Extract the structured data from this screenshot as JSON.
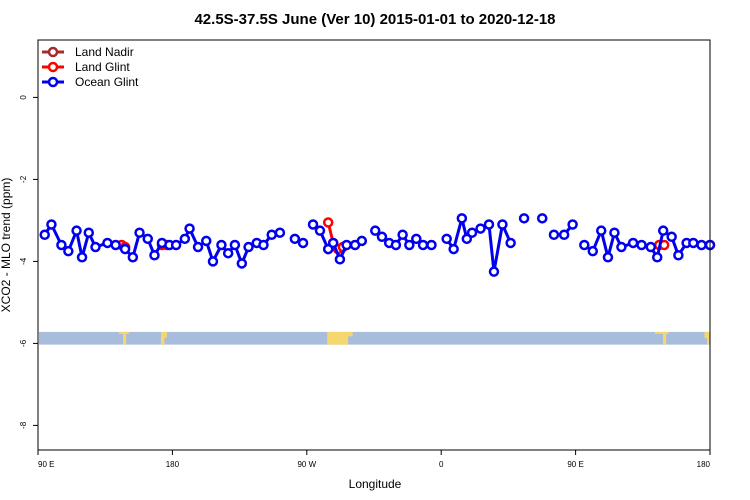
{
  "chart_data": {
    "type": "line",
    "title": "42.5S-37.5S June (Ver 10)   2015-01-01 to 2020-12-18",
    "xlabel": "Longitude",
    "ylabel": "XCO2 - MLO trend (ppm)",
    "xlim": [
      -90,
      180
    ],
    "ylim": [
      -8.6,
      1.4
    ],
    "x_ticks": [
      {
        "value": -90,
        "label": "90 E"
      },
      {
        "value": -36,
        "label": "180"
      },
      {
        "value": 18,
        "label": "90 W"
      },
      {
        "value": 72,
        "label": "0"
      },
      {
        "value": 126,
        "label": "90 E"
      },
      {
        "value": 180,
        "label": "180"
      }
    ],
    "y_ticks": [
      {
        "value": 0,
        "label": "0"
      },
      {
        "value": -2,
        "label": "-2"
      },
      {
        "value": -4,
        "label": "-4"
      },
      {
        "value": -6,
        "label": "-6"
      },
      {
        "value": -8,
        "label": "-8"
      }
    ],
    "legend_position": "top-left",
    "grid": false,
    "series": [
      {
        "name": "Land Nadir",
        "color": "#a52a2a",
        "segments": [
          [
            [
              26.6,
              -3.7
            ]
          ]
        ]
      },
      {
        "name": "Land Glint",
        "color": "#ff0000",
        "segments": [
          [
            [
              -56.4,
              -3.6
            ],
            [
              -55,
              -3.65
            ]
          ],
          [
            [
              -40.2,
              -3.6
            ],
            [
              -38.2,
              -3.6
            ]
          ],
          [
            [
              26.6,
              -3.05
            ],
            [
              28.6,
              -3.55
            ],
            [
              30.5,
              -3.7
            ],
            [
              32.5,
              -3.65
            ]
          ],
          [
            [
              159.6,
              -3.6
            ],
            [
              161.6,
              -3.6
            ]
          ],
          [
            [
              180,
              -3.6
            ]
          ]
        ]
      },
      {
        "name": "Ocean Glint",
        "color": "#0000ee",
        "segments": [
          [
            [
              -87.3,
              -3.35
            ],
            [
              -84.6,
              -3.1
            ],
            [
              -80.6,
              -3.6
            ],
            [
              -77.8,
              -3.75
            ],
            [
              -74.5,
              -3.25
            ],
            [
              -72.3,
              -3.9
            ],
            [
              -69.6,
              -3.3
            ],
            [
              -66.9,
              -3.65
            ],
            [
              -62.1,
              -3.55
            ],
            [
              -58.8,
              -3.6
            ],
            [
              -55,
              -3.7
            ],
            [
              -51.9,
              -3.9
            ],
            [
              -49.2,
              -3.3
            ],
            [
              -45.9,
              -3.45
            ],
            [
              -43.2,
              -3.85
            ],
            [
              -40.2,
              -3.55
            ],
            [
              -37.2,
              -3.6
            ],
            [
              -34.5,
              -3.6
            ],
            [
              -31,
              -3.45
            ],
            [
              -29.1,
              -3.2
            ],
            [
              -25.7,
              -3.65
            ],
            [
              -22.4,
              -3.5
            ],
            [
              -19.7,
              -4
            ],
            [
              -16.3,
              -3.6
            ],
            [
              -13.6,
              -3.8
            ],
            [
              -10.9,
              -3.6
            ],
            [
              -8.1,
              -4.05
            ],
            [
              -5.4,
              -3.65
            ],
            [
              -2.1,
              -3.55
            ],
            [
              0.6,
              -3.6
            ],
            [
              3.9,
              -3.35
            ],
            [
              7.2,
              -3.3
            ]
          ],
          [
            [
              13.2,
              -3.45
            ],
            [
              16.5,
              -3.55
            ]
          ],
          [
            [
              20.5,
              -3.1
            ],
            [
              23.3,
              -3.25
            ],
            [
              26.6,
              -3.7
            ],
            [
              28.6,
              -3.55
            ],
            [
              31.3,
              -3.95
            ],
            [
              34,
              -3.6
            ],
            [
              37.4,
              -3.6
            ],
            [
              40.1,
              -3.5
            ]
          ],
          [
            [
              45.5,
              -3.25
            ],
            [
              48.2,
              -3.4
            ],
            [
              51.1,
              -3.55
            ],
            [
              53.8,
              -3.6
            ],
            [
              56.5,
              -3.35
            ],
            [
              59.2,
              -3.6
            ],
            [
              62,
              -3.45
            ],
            [
              64.7,
              -3.6
            ],
            [
              68.1,
              -3.6
            ]
          ],
          [
            [
              74.2,
              -3.45
            ],
            [
              77,
              -3.7
            ],
            [
              80.3,
              -2.95
            ],
            [
              82.3,
              -3.45
            ],
            [
              84.4,
              -3.3
            ],
            [
              87.8,
              -3.2
            ],
            [
              91.2,
              -3.1
            ],
            [
              93.2,
              -4.25
            ],
            [
              96.6,
              -3.1
            ],
            [
              99.9,
              -3.55
            ]
          ],
          [
            [
              105.3,
              -2.95
            ]
          ],
          [
            [
              112.6,
              -2.95
            ]
          ],
          [
            [
              117.3,
              -3.35
            ],
            [
              121.4,
              -3.35
            ],
            [
              124.8,
              -3.1
            ]
          ],
          [
            [
              129.5,
              -3.6
            ],
            [
              132.9,
              -3.75
            ],
            [
              136.3,
              -3.25
            ],
            [
              139,
              -3.9
            ],
            [
              141.6,
              -3.3
            ],
            [
              144.4,
              -3.65
            ],
            [
              149.1,
              -3.55
            ],
            [
              152.5,
              -3.6
            ],
            [
              156.2,
              -3.65
            ],
            [
              158.8,
              -3.9
            ],
            [
              161.2,
              -3.25
            ],
            [
              164.6,
              -3.4
            ],
            [
              167.3,
              -3.85
            ],
            [
              170.6,
              -3.55
            ],
            [
              173.3,
              -3.55
            ],
            [
              176.6,
              -3.6
            ],
            [
              180,
              -3.6
            ]
          ]
        ]
      }
    ],
    "land_band": {
      "y_top": -5.72,
      "y_bottom": -6.03,
      "ocean_color": "#a7bddb",
      "land_color": "#f5d76e",
      "land_spans": [
        {
          "x0": -57.5,
          "x1": -53.5,
          "depth": 0.15
        },
        {
          "x0": -55.8,
          "x1": -54.6,
          "depth": 1.0
        },
        {
          "x0": -39.7,
          "x1": -38.2,
          "depth": 0.45
        },
        {
          "x0": -40.6,
          "x1": -39.2,
          "depth": 1.0
        },
        {
          "x0": 26.2,
          "x1": 34.6,
          "depth": 1.0
        },
        {
          "x0": 34.6,
          "x1": 36.4,
          "depth": 0.35
        },
        {
          "x0": 157.9,
          "x1": 163.3,
          "depth": 0.15
        },
        {
          "x0": 161.1,
          "x1": 162.4,
          "depth": 1.0
        },
        {
          "x0": 177.8,
          "x1": 180,
          "depth": 0.5
        },
        {
          "x0": 178.8,
          "x1": 180,
          "depth": 1.0
        }
      ]
    }
  }
}
